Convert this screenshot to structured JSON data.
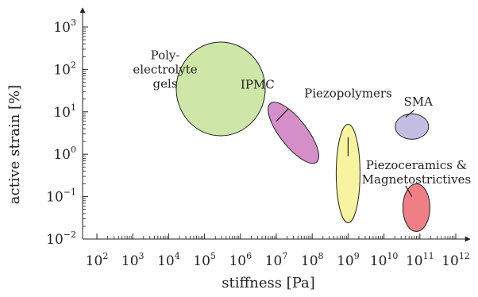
{
  "chart_data": {
    "type": "scatter",
    "title": "",
    "xlabel": "stiffness [Pa]",
    "ylabel": "active strain [%]",
    "x_scale": "log",
    "y_scale": "log",
    "xlim": [
      100,
      1000000000000
    ],
    "ylim": [
      0.01,
      1000
    ],
    "x_ticks": [
      {
        "base": "10",
        "exp": "2",
        "value": 100
      },
      {
        "base": "10",
        "exp": "3",
        "value": 1000
      },
      {
        "base": "10",
        "exp": "4",
        "value": 10000
      },
      {
        "base": "10",
        "exp": "5",
        "value": 100000
      },
      {
        "base": "10",
        "exp": "6",
        "value": 1000000
      },
      {
        "base": "10",
        "exp": "7",
        "value": 10000000
      },
      {
        "base": "10",
        "exp": "8",
        "value": 100000000
      },
      {
        "base": "10",
        "exp": "9",
        "value": 1000000000
      },
      {
        "base": "10",
        "exp": "10",
        "value": 10000000000
      },
      {
        "base": "10",
        "exp": "11",
        "value": 100000000000
      },
      {
        "base": "10",
        "exp": "12",
        "value": 1000000000000
      }
    ],
    "y_ticks": [
      {
        "base": "10",
        "exp": "−2",
        "value": 0.01
      },
      {
        "base": "10",
        "exp": "−1",
        "value": 0.1
      },
      {
        "base": "10",
        "exp": "0",
        "value": 1
      },
      {
        "base": "10",
        "exp": "1",
        "value": 10
      },
      {
        "base": "10",
        "exp": "2",
        "value": 100
      },
      {
        "base": "10",
        "exp": "3",
        "value": 1000
      }
    ],
    "grid": false,
    "regions": [
      {
        "lines": [
          "Poly-",
          "electrolyte",
          "gels"
        ],
        "x_range": [
          4000,
          20000000
        ],
        "y_range": [
          1.2,
          1000
        ],
        "rotation": 0,
        "fill": "#cfe6a9",
        "label_inside": true,
        "label_anchor_xy": [
          8000,
          80
        ]
      },
      {
        "lines": [
          "IPMC"
        ],
        "center": [
          30000000,
          3.2
        ],
        "rotation": 52,
        "fill": "#d58fc8",
        "label_anchor_xy": [
          3000000,
          35
        ],
        "pointer_from_xy": [
          10000000,
          6
        ],
        "pointer_to_xy": [
          22000000,
          12
        ]
      },
      {
        "lines": [
          "Piezopolymers"
        ],
        "center": [
          1000000000,
          0.35
        ],
        "rotation": 0,
        "fill": "#f7f3a0",
        "label_anchor_xy": [
          1000000000,
          22
        ],
        "pointer_from_xy": [
          1000000000,
          0.9
        ],
        "pointer_to_xy": [
          1000000000,
          2.5
        ]
      },
      {
        "lines": [
          "SMA"
        ],
        "center": [
          60000000000,
          4.5
        ],
        "rotation": 0,
        "fill": "#c4bfe2",
        "label_anchor_xy": [
          90000000000,
          14
        ],
        "pointer_from_xy": [
          40000000000,
          7.5
        ],
        "pointer_to_xy": [
          70000000000,
          11
        ]
      },
      {
        "lines": [
          "Piezoceramics &",
          "Magnetostrictives"
        ],
        "center": [
          80000000000,
          0.055
        ],
        "rotation": 0,
        "fill": "#ee7f86",
        "label_anchor_xy": [
          80000000000,
          0.3
        ],
        "pointer_from_xy": [
          60000000000,
          0.1
        ],
        "pointer_to_xy": [
          40000000000,
          0.18
        ]
      }
    ]
  }
}
